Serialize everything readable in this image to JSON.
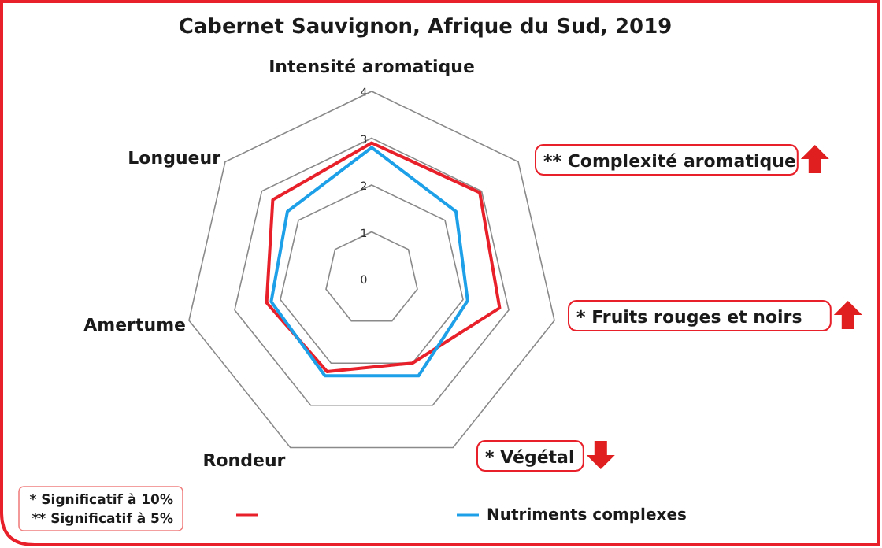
{
  "chart_data": {
    "type": "radar",
    "title": "Cabernet Sauvignon, Afrique du Sud, 2019",
    "categories": [
      "Intensité aromatique",
      "** Complexité aromatique",
      "* Fruits rouges et noirs",
      "* Végétal",
      "Rondeur",
      "Amertume",
      "Longueur"
    ],
    "series": [
      {
        "color": "#e8202a",
        "values": [
          2.9,
          2.95,
          2.8,
          2.0,
          2.2,
          2.3,
          2.7
        ]
      },
      {
        "name": "Nutriments complexes",
        "color": "#1ea0e8",
        "values": [
          2.8,
          2.3,
          2.1,
          2.3,
          2.3,
          2.2,
          2.3
        ]
      }
    ],
    "ylim": [
      0,
      4
    ],
    "yticks": [
      0,
      1,
      2,
      3,
      4
    ],
    "legend": "bottom",
    "annotations": [
      "* Significatif à 10%",
      "** Significatif à 5%"
    ]
  }
}
